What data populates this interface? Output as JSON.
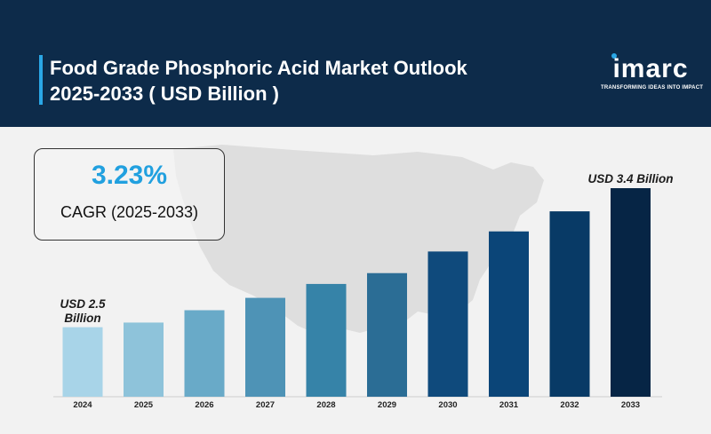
{
  "header": {
    "title_line1": "Food Grade Phosphoric Acid Market Outlook",
    "title_line2": "2025-2033 ( USD Billion )"
  },
  "logo": {
    "name": "imarc",
    "tagline": "TRANSFORMING IDEAS INTO IMPACT"
  },
  "cagr": {
    "value": "3.23%",
    "label": "CAGR (2025-2033)"
  },
  "chart_data": {
    "type": "bar",
    "title": "Food Grade Phosphoric Acid Market Outlook 2025-2033 ( USD Billion )",
    "categories": [
      "2024",
      "2025",
      "2026",
      "2027",
      "2028",
      "2029",
      "2030",
      "2031",
      "2032",
      "2033"
    ],
    "values": [
      2.5,
      2.53,
      2.61,
      2.69,
      2.78,
      2.85,
      2.99,
      3.12,
      3.25,
      3.4
    ],
    "ylim": [
      2.05,
      3.43
    ],
    "colors": [
      "#a8d4e8",
      "#8ec3da",
      "#69aac8",
      "#4e93b6",
      "#3683a8",
      "#2b6d95",
      "#0f4a7c",
      "#0b4578",
      "#083a66",
      "#062545"
    ],
    "annotations": [
      {
        "category": "2024",
        "text_line1": "USD 2.5",
        "text_line2": "Billion"
      },
      {
        "category": "2033",
        "text_line1": "USD 3.4 Billion",
        "text_line2": ""
      }
    ],
    "grid": false,
    "legend": "none",
    "xlabel": "",
    "ylabel": ""
  }
}
